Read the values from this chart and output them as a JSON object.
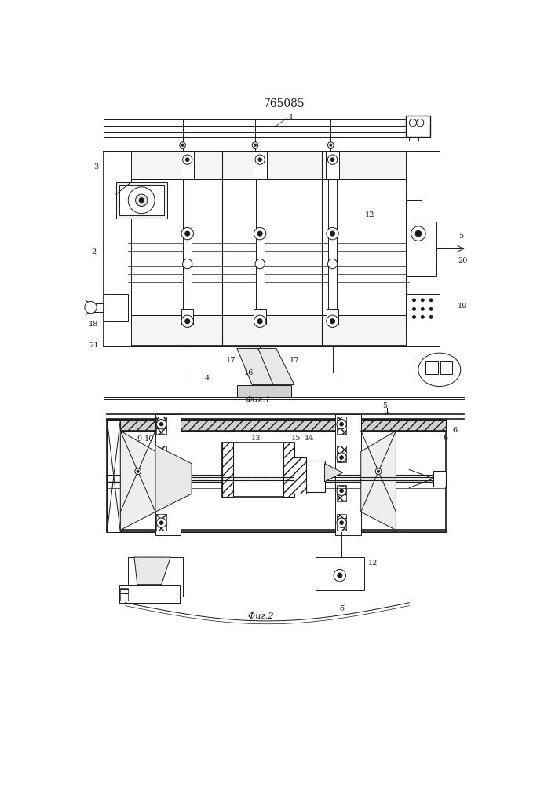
{
  "title": "765085",
  "fig1_caption": "Фиг.1",
  "fig2_caption": "Фиг.2",
  "bg_color": "#ffffff",
  "line_color": "#1a1a1a",
  "lw": 0.7,
  "title_fontsize": 10,
  "caption_fontsize": 8,
  "label_fontsize": 7
}
